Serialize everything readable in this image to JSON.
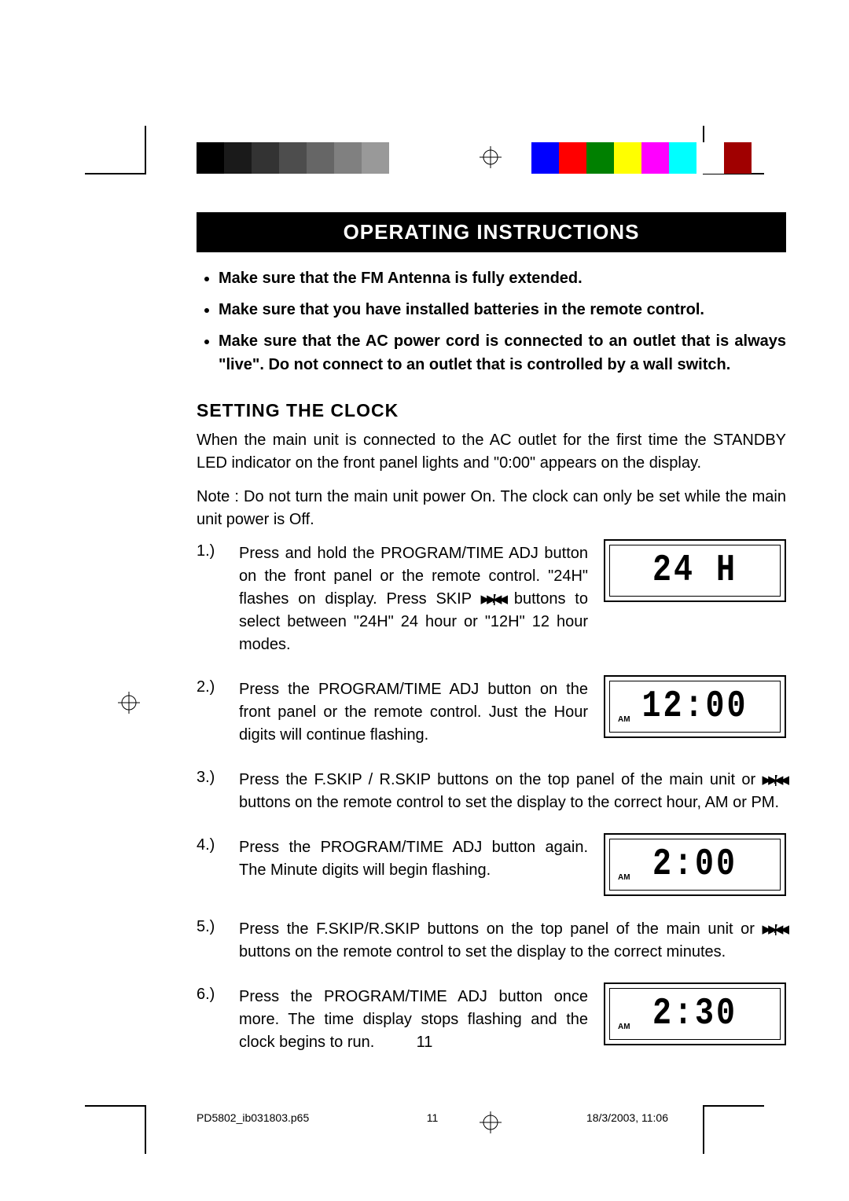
{
  "swatches_gray": [
    "#000000",
    "#1a1a1a",
    "#333333",
    "#4d4d4d",
    "#666666",
    "#808080",
    "#999999",
    "#ffffff"
  ],
  "swatches_color": [
    "#0000ff",
    "#ff0000",
    "#008000",
    "#ffff00",
    "#ff00ff",
    "#00ffff",
    "#ffffff",
    "#a00000"
  ],
  "title": "OPERATING INSTRUCTIONS",
  "bullets": [
    "Make sure that the FM Antenna is fully extended.",
    "Make sure that you have installed batteries in the remote control.",
    "Make sure that the AC power cord is connected to an outlet that is always \"live\". Do not connect to an outlet that is controlled by a wall switch."
  ],
  "section_heading": "SETTING THE CLOCK",
  "intro_para": "When the main unit is connected to the AC outlet for the first time the STANDBY LED indicator on the front panel lights and \"0:00\" appears on the display.",
  "note_para": "Note : Do not turn the main unit power On. The clock can only be set while the main unit power is Off.",
  "steps": [
    {
      "num": "1.)",
      "text_before": "Press and hold the PROGRAM/TIME ADJ button on the front panel or the remote control. \"24H\" flashes on display. Press SKIP ",
      "btn": "▶▶| / |◀◀",
      "text_after": " buttons to select between \"24H\" 24 hour or \"12H\" 12 hour modes.",
      "lcd": "24 H",
      "am": false
    },
    {
      "num": "2.)",
      "text_before": "Press the PROGRAM/TIME ADJ button on the front panel or the remote control. Just the Hour digits will continue flashing.",
      "btn": "",
      "text_after": "",
      "lcd": "12:00",
      "am": true
    },
    {
      "num": "3.)",
      "text_before": "Press the F.SKIP / R.SKIP buttons on the top panel of the main unit or ",
      "btn": "▶▶| / |◀◀",
      "text_after": " buttons on the remote control to set the display to the correct hour, AM or PM.",
      "lcd": "",
      "am": false
    },
    {
      "num": "4.)",
      "text_before": "Press the PROGRAM/TIME ADJ button again. The Minute digits will begin flashing.",
      "btn": "",
      "text_after": "",
      "lcd": "2:00",
      "am": true
    },
    {
      "num": "5.)",
      "text_before": "Press the F.SKIP/R.SKIP buttons on the top panel of the main unit or ",
      "btn": "▶▶| / |◀◀",
      "text_after": " buttons on the remote control to set the display to the correct minutes.",
      "lcd": "",
      "am": false
    },
    {
      "num": "6.)",
      "text_before": "Press the PROGRAM/TIME ADJ button once more. The time display stops flashing and the clock begins to run.",
      "btn": "",
      "text_after": "",
      "lcd": "2:30",
      "am": true
    }
  ],
  "page_number": "11",
  "footer": {
    "file": "PD5802_ib031803.p65",
    "pg": "11",
    "date": "18/3/2003, 11:06"
  }
}
